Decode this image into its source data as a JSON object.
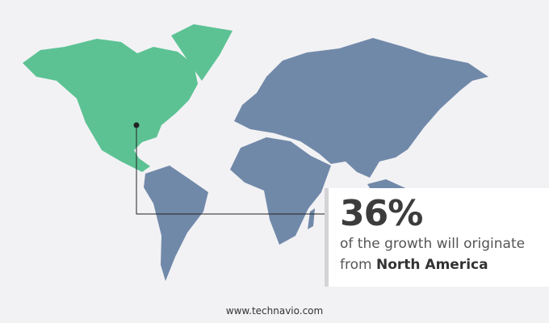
{
  "map": {
    "highlighted_region": "North America",
    "colors": {
      "highlight": "#5cc294",
      "other": "#7189a9",
      "background": "#f2f2f4",
      "leader_line": "#222222"
    }
  },
  "callout": {
    "percentage": "36%",
    "line1": "of the growth will originate",
    "line2_prefix": "from",
    "region": "North America"
  },
  "footer": {
    "url": "www.technavio.com"
  }
}
